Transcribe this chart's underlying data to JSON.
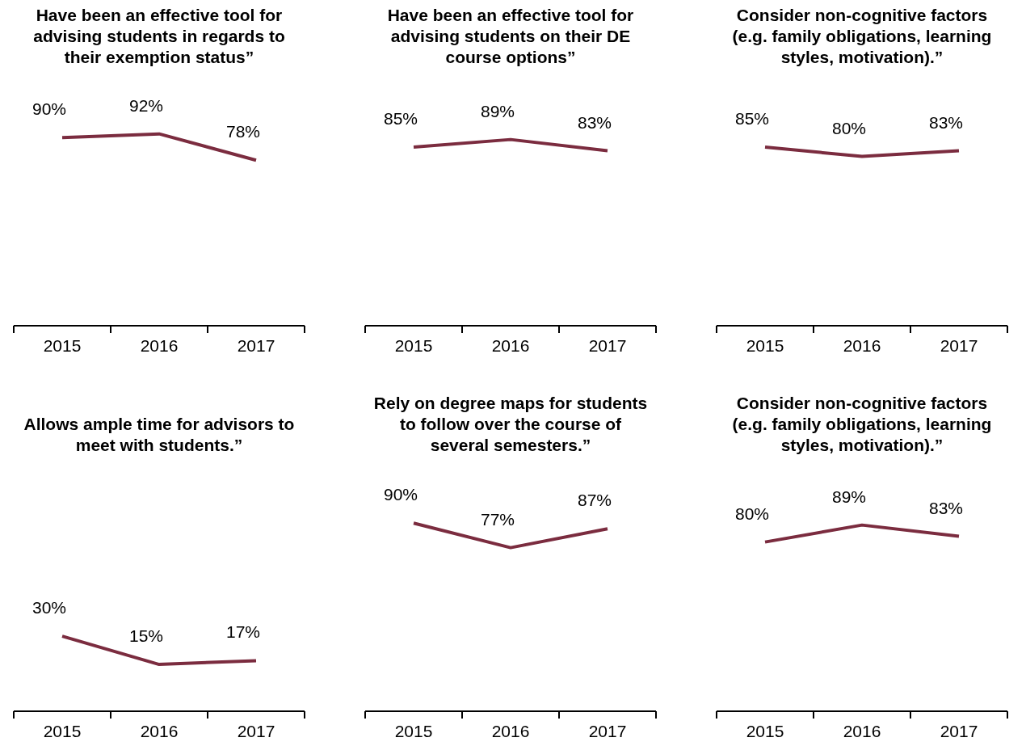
{
  "chart_data": [
    {
      "type": "line",
      "title": "Have been an effective tool for advising students in regards to their exemption status”",
      "categories": [
        "2015",
        "2016",
        "2017"
      ],
      "series": [
        {
          "color": "#7b2c3f",
          "values": [
            90,
            92,
            78
          ],
          "value_labels": [
            "90%",
            "92%",
            "78%"
          ]
        }
      ],
      "tick_labels": "x"
    },
    {
      "type": "line",
      "title": "Have been an effective tool for advising students on their DE course options”",
      "categories": [
        "2015",
        "2016",
        "2017"
      ],
      "series": [
        {
          "color": "#7b2c3f",
          "values": [
            85,
            89,
            83
          ],
          "value_labels": [
            "85%",
            "89%",
            "83%"
          ]
        }
      ],
      "tick_labels": "x"
    },
    {
      "type": "line",
      "title": "Consider non-cognitive factors (e.g. family obligations, learning styles, motivation).”",
      "categories": [
        "2015",
        "2016",
        "2017"
      ],
      "series": [
        {
          "color": "#7b2c3f",
          "values": [
            85,
            80,
            83
          ],
          "value_labels": [
            "85%",
            "80%",
            "83%"
          ]
        }
      ],
      "tick_labels": "x"
    },
    {
      "type": "line",
      "title": "Allows ample time for advisors to meet with students.”",
      "categories": [
        "2015",
        "2016",
        "2017"
      ],
      "series": [
        {
          "color": "#7b2c3f",
          "values": [
            30,
            15,
            17
          ],
          "value_labels": [
            "30%",
            "15%",
            "17%"
          ]
        }
      ],
      "tick_labels": "x"
    },
    {
      "type": "line",
      "title": "Rely on degree maps for students to follow over the course of several semesters.”",
      "categories": [
        "2015",
        "2016",
        "2017"
      ],
      "series": [
        {
          "color": "#7b2c3f",
          "values": [
            90,
            77,
            87
          ],
          "value_labels": [
            "90%",
            "77%",
            "87%"
          ]
        }
      ],
      "tick_labels": "x"
    },
    {
      "type": "line",
      "title": "Consider non-cognitive factors (e.g. family obligations, learning styles, motivation).”",
      "categories": [
        "2015",
        "2016",
        "2017"
      ],
      "series": [
        {
          "color": "#7b2c3f",
          "values": [
            80,
            89,
            83
          ],
          "value_labels": [
            "80%",
            "89%",
            "83%"
          ]
        }
      ],
      "tick_labels": "x"
    }
  ]
}
